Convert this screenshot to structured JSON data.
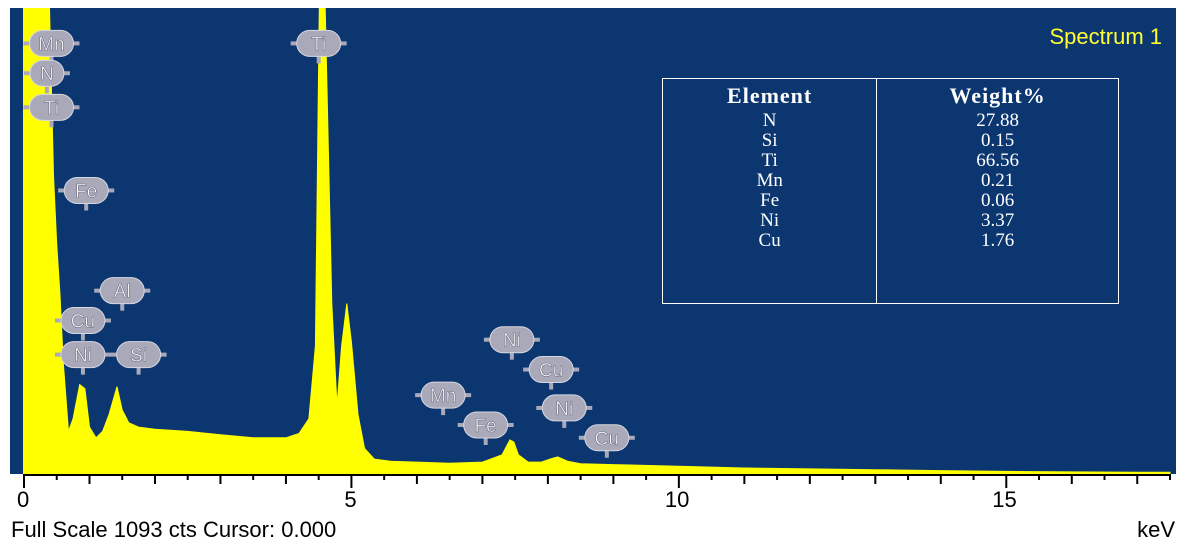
{
  "chart_data": {
    "type": "area",
    "title": "Spectrum 1",
    "xlabel": "keV",
    "xlim": [
      0,
      17.5
    ],
    "ylim": [
      0,
      1093
    ],
    "x_ticks": [
      "0",
      "5",
      "10",
      "15"
    ],
    "x_tick_values": [
      0,
      5,
      10,
      15
    ],
    "full_scale_text": "Full Scale 1093 cts Cursor: 0.000",
    "series": [
      {
        "x": [
          0.0,
          0.1,
          0.2,
          0.3,
          0.39,
          0.45,
          0.5,
          0.55,
          0.6,
          0.68,
          0.75,
          0.85,
          0.93,
          1.0,
          1.1,
          1.2,
          1.3,
          1.42,
          1.5,
          1.6,
          1.75,
          2.0,
          2.5,
          3.0,
          3.5,
          4.0,
          4.2,
          4.35,
          4.45,
          4.51,
          4.6,
          4.7,
          4.78,
          4.85,
          4.93,
          5.0,
          5.1,
          5.2,
          5.35,
          5.6,
          6.0,
          6.5,
          7.0,
          7.3,
          7.42,
          7.48,
          7.55,
          7.7,
          7.9,
          8.05,
          8.15,
          8.3,
          8.5,
          9.0,
          10.0,
          11.0,
          12.0,
          13.0,
          14.0,
          15.0,
          16.0,
          17.0,
          17.5
        ],
        "y": [
          1093,
          1093,
          1093,
          1093,
          1093,
          700,
          540,
          420,
          260,
          100,
          130,
          210,
          200,
          110,
          85,
          100,
          140,
          205,
          150,
          120,
          110,
          105,
          100,
          92,
          85,
          85,
          95,
          130,
          300,
          1093,
          1093,
          400,
          160,
          300,
          400,
          310,
          140,
          60,
          35,
          30,
          28,
          25,
          28,
          45,
          80,
          75,
          45,
          28,
          28,
          36,
          40,
          30,
          24,
          22,
          18,
          14,
          12,
          10,
          8,
          6,
          5,
          4,
          4
        ]
      }
    ],
    "peak_labels": [
      {
        "text": "Mn",
        "x": 0.42,
        "y": 1010
      },
      {
        "text": "N",
        "x": 0.35,
        "y": 940
      },
      {
        "text": "Ti",
        "x": 0.42,
        "y": 860
      },
      {
        "text": "Fe",
        "x": 0.95,
        "y": 665
      },
      {
        "text": "Al",
        "x": 1.5,
        "y": 430
      },
      {
        "text": "Cu",
        "x": 0.9,
        "y": 360
      },
      {
        "text": "Ni",
        "x": 0.9,
        "y": 280
      },
      {
        "text": "Si",
        "x": 1.75,
        "y": 280
      },
      {
        "text": "Ti",
        "x": 4.5,
        "y": 1010
      },
      {
        "text": "Ni",
        "x": 7.45,
        "y": 315
      },
      {
        "text": "Cu",
        "x": 8.05,
        "y": 245
      },
      {
        "text": "Mn",
        "x": 6.4,
        "y": 185
      },
      {
        "text": "Ni",
        "x": 8.25,
        "y": 155
      },
      {
        "text": "Fe",
        "x": 7.05,
        "y": 115
      },
      {
        "text": "Cu",
        "x": 8.9,
        "y": 85
      }
    ],
    "grid": false,
    "legend": "none"
  },
  "table": {
    "headers": [
      "Element",
      "Weight%"
    ],
    "rows": [
      [
        "N",
        "27.88"
      ],
      [
        "Si",
        "0.15"
      ],
      [
        "Ti",
        "66.56"
      ],
      [
        "Mn",
        "0.21"
      ],
      [
        "Fe",
        "0.06"
      ],
      [
        "Ni",
        "3.37"
      ],
      [
        "Cu",
        "1.76"
      ]
    ]
  },
  "colors": {
    "background": "#0b3670",
    "spectrum": "#ffff00",
    "title": "#ffff33",
    "label_bubble": "#a9a9b9"
  }
}
